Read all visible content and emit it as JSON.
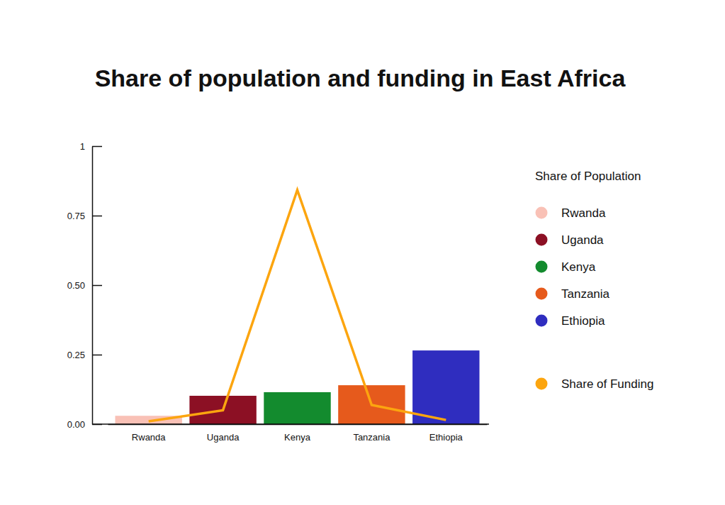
{
  "chart_data": {
    "type": "bar",
    "title": "Share of population and funding in East Africa",
    "categories": [
      "Rwanda",
      "Uganda",
      "Kenya",
      "Tanzania",
      "Ethiopia"
    ],
    "series": [
      {
        "name": "Share of Population",
        "type": "bar",
        "colors": [
          "#f9c1b6",
          "#8c1024",
          "#138b2e",
          "#e65a1c",
          "#2f2dbf"
        ],
        "values": [
          0.03,
          0.102,
          0.115,
          0.14,
          0.265
        ]
      },
      {
        "name": "Share of Funding",
        "type": "line",
        "color": "#fca50f",
        "values": [
          0.01,
          0.05,
          0.842,
          0.069,
          0.015
        ]
      }
    ],
    "ylim": [
      0,
      1
    ],
    "yticks": [
      {
        "value": 0,
        "label": "0.00"
      },
      0.25,
      {
        "value": 0.5,
        "label": "0.50"
      },
      0.75,
      1
    ],
    "grid": false,
    "legend": "right"
  }
}
